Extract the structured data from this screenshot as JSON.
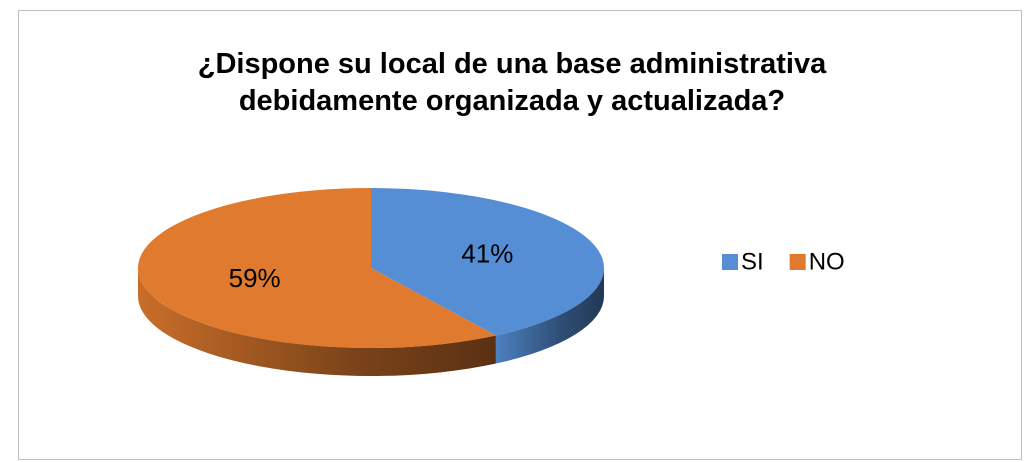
{
  "chart_data": {
    "type": "pie",
    "title": "¿Dispone su local de una base administrativa debidamente organizada y actualizada?",
    "categories": [
      "SI",
      "NO"
    ],
    "values": [
      41,
      59
    ],
    "value_labels": [
      "41%",
      "59%"
    ],
    "colors": [
      "#558ed5",
      "#e07a2e"
    ],
    "legend": "right",
    "three_d": true
  }
}
